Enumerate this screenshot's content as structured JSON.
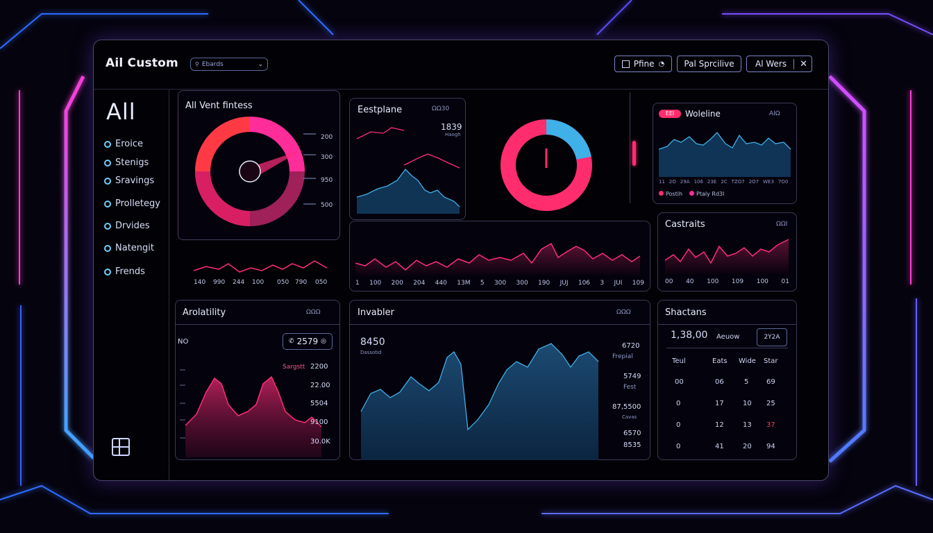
{
  "app": {
    "title": "Ail Custom"
  },
  "search": {
    "value": "Ebards"
  },
  "header_buttons": [
    {
      "label": "Pfine"
    },
    {
      "label": "Pal Sprcilive"
    },
    {
      "label": "Al Wers"
    }
  ],
  "sidebar": {
    "heading": "All",
    "items": [
      {
        "label": "Eroice"
      },
      {
        "label": "Stenigs"
      },
      {
        "label": "Sravings"
      },
      {
        "label": "Prolletegy"
      },
      {
        "label": "Drvides"
      },
      {
        "label": "Natengit"
      },
      {
        "label": "Frends"
      }
    ]
  },
  "panels": {
    "fitness": {
      "title": "All Vent fintess",
      "gauge_labels": [
        "200",
        "300",
        "950",
        "500"
      ],
      "axis": [
        "140",
        "990",
        "244",
        "100",
        "050",
        "790",
        "050"
      ]
    },
    "estplane": {
      "title": "Eestplane",
      "action": "ΩΩ30",
      "value": "1839",
      "sub": "Haogh"
    },
    "donut": {
      "segments": [
        {
          "value": 78,
          "color": "#ff2d6e"
        },
        {
          "value": 22,
          "color": "#3fb0e8"
        }
      ]
    },
    "wide_line": {
      "axis": [
        "1",
        "100",
        "200",
        "204",
        "440",
        "13M",
        "5",
        "300",
        "300",
        "190",
        "JUJ",
        "106",
        "3",
        "JUI",
        "109"
      ]
    },
    "woleline": {
      "badge": "EEI",
      "title": "Woleline",
      "action": "AIΩ",
      "axis": [
        "11",
        "2O",
        "29A",
        "106",
        "23E",
        "2C",
        "TZO7",
        "2O7",
        "WE3",
        "7O0"
      ],
      "legend": [
        "Postih",
        "Ptaly Rd3l"
      ]
    },
    "castraits": {
      "title": "Castraits",
      "action": "ΩΩI",
      "axis": [
        "00",
        "40",
        "100",
        "109",
        "100",
        "01"
      ]
    },
    "arolatility": {
      "title": "Arolatility",
      "action": "ΩΩΩ",
      "left_label": "NO",
      "chip": "2579",
      "series_label": "Sargstt",
      "values": [
        "2200",
        "22.00",
        "5504",
        "9100",
        "30.0K"
      ]
    },
    "invabler": {
      "title": "Invabler",
      "action": "ΩΩΩ",
      "value": "8450",
      "sub": "Dassotid",
      "right": [
        {
          "value": "6720",
          "label": "Frepial"
        },
        {
          "value": "5749",
          "label": "Fest"
        },
        {
          "value": "87,5500",
          "label": "Cavas"
        },
        {
          "value": "6570",
          "label": ""
        },
        {
          "value": "8535",
          "label": ""
        }
      ]
    },
    "shactans": {
      "title": "Shactans",
      "value": "1,38,00",
      "value_label": "Aeuow",
      "badge": "2Y2A",
      "columns": [
        "Teul",
        "Eats",
        "Wide",
        "Star"
      ],
      "rows": [
        [
          "00",
          "06",
          "5",
          "69"
        ],
        [
          "0",
          "17",
          "10",
          "25"
        ],
        [
          "0",
          "12",
          "13",
          "37"
        ],
        [
          "0",
          "41",
          "20",
          "94"
        ]
      ]
    }
  },
  "colors": {
    "accent_pink": "#ff2d6e",
    "accent_blue": "#3fb0e8",
    "neon_purple": "#a040ff"
  }
}
